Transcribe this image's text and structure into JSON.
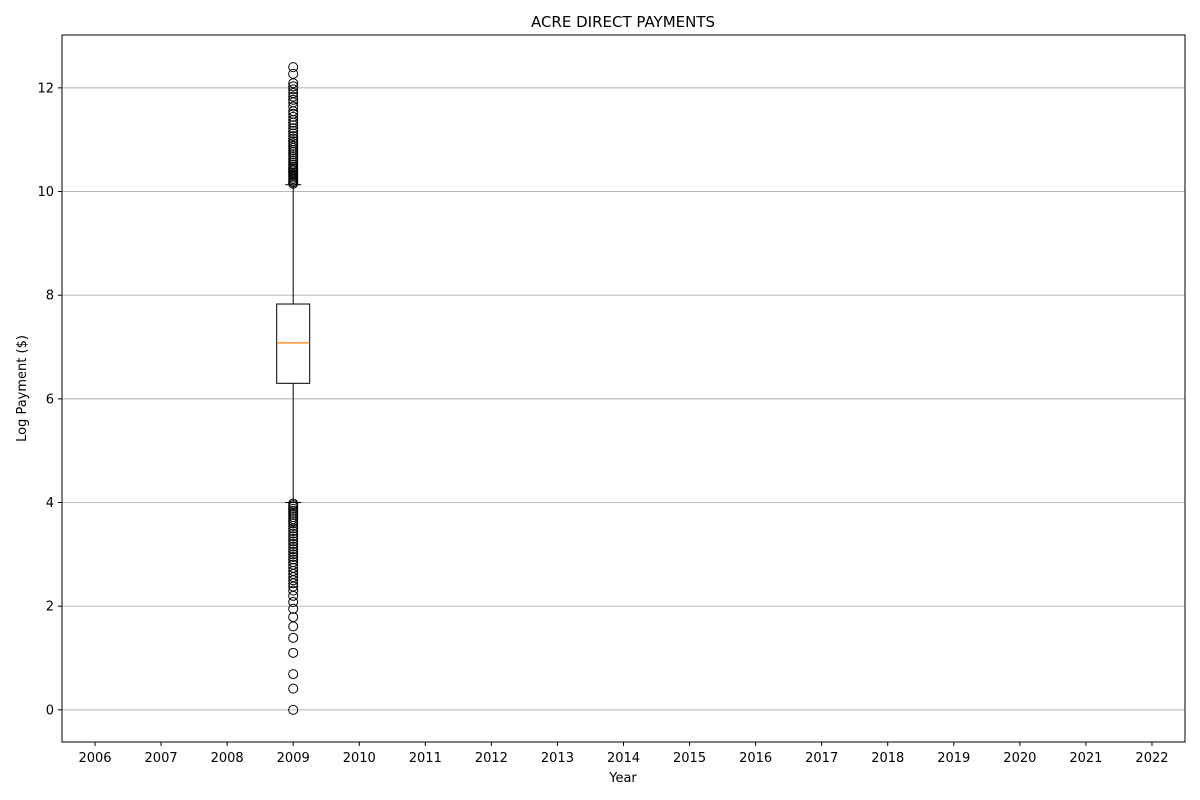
{
  "chart_data": {
    "type": "boxplot",
    "title": "ACRE DIRECT PAYMENTS",
    "xlabel": "Year",
    "ylabel": "Log Payment ($)",
    "categories": [
      "2006",
      "2007",
      "2008",
      "2009",
      "2010",
      "2011",
      "2012",
      "2013",
      "2014",
      "2015",
      "2016",
      "2017",
      "2018",
      "2019",
      "2020",
      "2021",
      "2022"
    ],
    "ylim": [
      -0.62,
      13.02
    ],
    "yticks": [
      0,
      2,
      4,
      6,
      8,
      10,
      12
    ],
    "grid": "y",
    "legend": "none",
    "colors": {
      "box": "#000000",
      "median": "#ff7f0e",
      "grid": "#b0b0b0"
    },
    "boxes": [
      {
        "category": "2009",
        "whisker_low": 4.0,
        "q1": 6.3,
        "median": 7.08,
        "q3": 7.83,
        "whisker_high": 10.13,
        "outliers": [
          12.4,
          12.27,
          12.09,
          12.03,
          11.97,
          11.9,
          11.83,
          11.77,
          11.72,
          11.64,
          11.55,
          11.5,
          11.44,
          11.38,
          11.33,
          11.28,
          11.22,
          11.17,
          11.12,
          11.07,
          11.02,
          10.97,
          10.93,
          10.88,
          10.84,
          10.8,
          10.76,
          10.72,
          10.68,
          10.64,
          10.6,
          10.56,
          10.52,
          10.48,
          10.45,
          10.42,
          10.39,
          10.36,
          10.33,
          10.3,
          10.27,
          10.24,
          10.21,
          10.18,
          10.15,
          3.98,
          3.95,
          3.92,
          3.88,
          3.84,
          3.8,
          3.76,
          3.72,
          3.68,
          3.64,
          3.6,
          3.55,
          3.5,
          3.45,
          3.4,
          3.35,
          3.3,
          3.25,
          3.2,
          3.15,
          3.1,
          3.05,
          3.0,
          2.95,
          2.9,
          2.85,
          2.8,
          2.74,
          2.68,
          2.62,
          2.56,
          2.5,
          2.44,
          2.38,
          2.3,
          2.2,
          2.08,
          1.95,
          1.79,
          1.61,
          1.39,
          1.1,
          0.69,
          0.41,
          0.0
        ]
      }
    ]
  }
}
